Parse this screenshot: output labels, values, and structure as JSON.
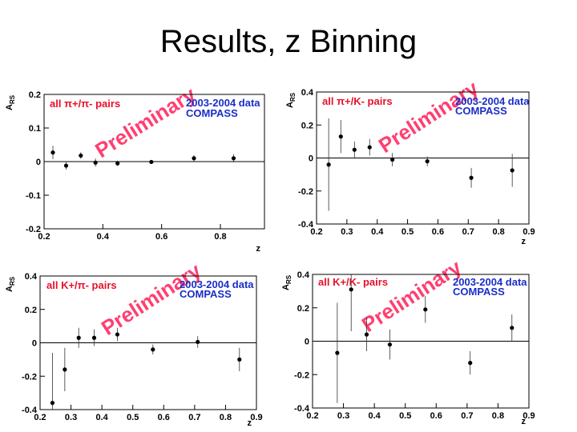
{
  "slide": {
    "title": "Results, z Binning"
  },
  "chart_data": [
    {
      "type": "scatter",
      "pairs_label": "all π+/π- pairs",
      "years_label": "2003-2004 data",
      "experiment_label": "COMPASS",
      "watermark": "Preliminary",
      "ylabel": "A",
      "ylabel_sub": "RS",
      "xlabel": "z",
      "xlim": [
        0.2,
        0.95
      ],
      "ylim": [
        -0.2,
        0.2
      ],
      "xticks": [
        "0.2",
        "0.4",
        "0.6",
        "0.8"
      ],
      "yticks": [
        "0.2",
        "0.1",
        "0",
        "-0.1",
        "-0.2"
      ],
      "points": [
        {
          "x": 0.23,
          "y": 0.027,
          "err": 0.02
        },
        {
          "x": 0.275,
          "y": -0.012,
          "err": 0.012
        },
        {
          "x": 0.325,
          "y": 0.018,
          "err": 0.01
        },
        {
          "x": 0.375,
          "y": -0.003,
          "err": 0.012
        },
        {
          "x": 0.45,
          "y": -0.005,
          "err": 0.008
        },
        {
          "x": 0.565,
          "y": -0.001,
          "err": 0.004
        },
        {
          "x": 0.71,
          "y": 0.01,
          "err": 0.009
        },
        {
          "x": 0.845,
          "y": 0.01,
          "err": 0.012
        }
      ]
    },
    {
      "type": "scatter",
      "pairs_label": "all π+/K- pairs",
      "years_label": "2003-2004 data",
      "experiment_label": "COMPASS",
      "watermark": "Preliminary",
      "ylabel": "A",
      "ylabel_sub": "RS",
      "xlabel": "z",
      "xlim": [
        0.2,
        0.9
      ],
      "ylim": [
        -0.4,
        0.4
      ],
      "xticks": [
        "0.2",
        "0.3",
        "0.4",
        "0.5",
        "0.6",
        "0.7",
        "0.8",
        "0.9"
      ],
      "yticks": [
        "0.4",
        "0.2",
        "0",
        "-0.2",
        "-0.4"
      ],
      "points": [
        {
          "x": 0.24,
          "y": -0.04,
          "err": 0.28
        },
        {
          "x": 0.28,
          "y": 0.13,
          "err": 0.1
        },
        {
          "x": 0.325,
          "y": 0.05,
          "err": 0.05
        },
        {
          "x": 0.375,
          "y": 0.065,
          "err": 0.05
        },
        {
          "x": 0.45,
          "y": -0.01,
          "err": 0.04
        },
        {
          "x": 0.565,
          "y": -0.02,
          "err": 0.03
        },
        {
          "x": 0.71,
          "y": -0.12,
          "err": 0.06
        },
        {
          "x": 0.845,
          "y": -0.075,
          "err": 0.1
        }
      ]
    },
    {
      "type": "scatter",
      "pairs_label": "all K+/π- pairs",
      "years_label": "2003-2004 data",
      "experiment_label": "COMPASS",
      "watermark": "Preliminary",
      "ylabel": "A",
      "ylabel_sub": "RS",
      "xlabel": "z",
      "xlim": [
        0.2,
        0.9
      ],
      "ylim": [
        -0.4,
        0.4
      ],
      "xticks": [
        "0.2",
        "0.3",
        "0.4",
        "0.5",
        "0.6",
        "0.7",
        "0.8",
        "0.9"
      ],
      "yticks": [
        "0.4",
        "0.2",
        "0",
        "-0.2",
        "-0.4"
      ],
      "points": [
        {
          "x": 0.24,
          "y": -0.36,
          "err": 0.3
        },
        {
          "x": 0.28,
          "y": -0.16,
          "err": 0.13
        },
        {
          "x": 0.325,
          "y": 0.03,
          "err": 0.06
        },
        {
          "x": 0.375,
          "y": 0.03,
          "err": 0.05
        },
        {
          "x": 0.45,
          "y": 0.05,
          "err": 0.04
        },
        {
          "x": 0.565,
          "y": -0.04,
          "err": 0.03
        },
        {
          "x": 0.71,
          "y": 0.005,
          "err": 0.035
        },
        {
          "x": 0.845,
          "y": -0.1,
          "err": 0.07
        }
      ]
    },
    {
      "type": "scatter",
      "pairs_label": "all K+/K- pairs",
      "years_label": "2003-2004 data",
      "experiment_label": "COMPASS",
      "watermark": "Preliminary",
      "ylabel": "A",
      "ylabel_sub": "RS",
      "xlabel": "z",
      "xlim": [
        0.2,
        0.9
      ],
      "ylim": [
        -0.4,
        0.4
      ],
      "xticks": [
        "0.2",
        "0.3",
        "0.4",
        "0.5",
        "0.6",
        "0.7",
        "0.8",
        "0.9"
      ],
      "yticks": [
        "0.4",
        "0.2",
        "0",
        "-0.2",
        "-0.4"
      ],
      "points": [
        {
          "x": 0.28,
          "y": -0.07,
          "err": 0.3
        },
        {
          "x": 0.325,
          "y": 0.31,
          "err": 0.25
        },
        {
          "x": 0.375,
          "y": 0.04,
          "err": 0.1
        },
        {
          "x": 0.45,
          "y": -0.02,
          "err": 0.09
        },
        {
          "x": 0.565,
          "y": 0.19,
          "err": 0.08
        },
        {
          "x": 0.71,
          "y": -0.13,
          "err": 0.07
        },
        {
          "x": 0.845,
          "y": 0.08,
          "err": 0.08
        }
      ]
    }
  ]
}
